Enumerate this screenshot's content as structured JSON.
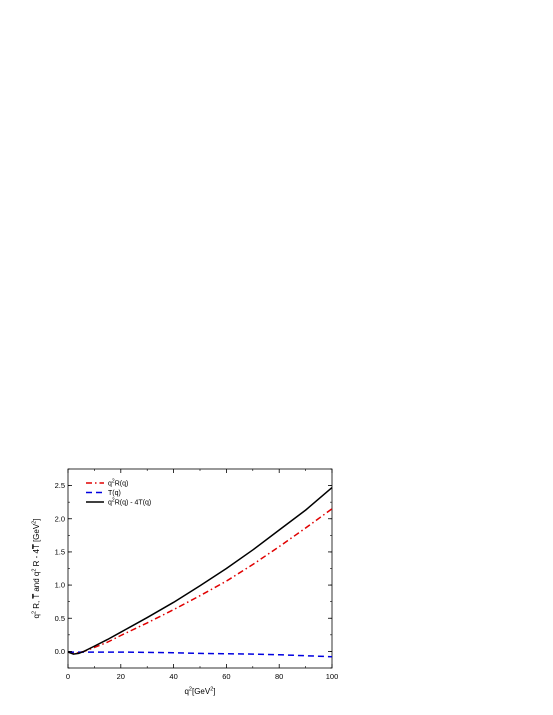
{
  "chart_data": {
    "type": "line",
    "xlabel_main": "q",
    "xlabel_sup": "2",
    "xlabel_rest": "[GeV",
    "xlabel_sup2": "2",
    "xlabel_end": "]",
    "ylabel_parts": [
      "q",
      "2",
      " R, ",
      "T",
      " and q",
      "2",
      " R - 4",
      "T",
      " [GeV",
      "2",
      "]"
    ],
    "xlim": [
      0,
      100
    ],
    "ylim": [
      -0.25,
      2.75
    ],
    "x_ticks": [
      0,
      20,
      40,
      60,
      80,
      100
    ],
    "y_ticks": [
      0.0,
      0.5,
      1.0,
      1.5,
      2.0,
      2.5
    ],
    "x_tick_labels": [
      "0",
      "20",
      "40",
      "60",
      "80",
      "100"
    ],
    "y_tick_labels": [
      "0.0",
      "0.5",
      "1.0",
      "1.5",
      "2.0",
      "2.5"
    ],
    "grid": false,
    "legend_position": "top-left",
    "series": [
      {
        "label_parts": [
          "q",
          "2",
          "R(q)"
        ],
        "color": "#e00000",
        "style": "dash-dot",
        "x": [
          0,
          2,
          4,
          6,
          8,
          10,
          15,
          20,
          30,
          40,
          50,
          60,
          70,
          80,
          90,
          100
        ],
        "y": [
          -0.01,
          -0.03,
          -0.02,
          0.0,
          0.03,
          0.06,
          0.14,
          0.24,
          0.43,
          0.63,
          0.84,
          1.06,
          1.31,
          1.58,
          1.86,
          2.15
        ]
      },
      {
        "label_parts": [
          "T(q)"
        ],
        "color": "#0000e0",
        "style": "dashed",
        "x": [
          0,
          10,
          20,
          30,
          40,
          50,
          60,
          70,
          80,
          90,
          100
        ],
        "y": [
          -0.01,
          -0.01,
          -0.01,
          -0.015,
          -0.02,
          -0.03,
          -0.035,
          -0.04,
          -0.05,
          -0.065,
          -0.08
        ]
      },
      {
        "label_parts": [
          "q",
          "2",
          "R(q) - 4T(q)"
        ],
        "color": "#000000",
        "style": "solid",
        "x": [
          0,
          2,
          4,
          6,
          8,
          10,
          15,
          20,
          30,
          40,
          50,
          60,
          70,
          80,
          90,
          100
        ],
        "y": [
          -0.01,
          -0.04,
          -0.03,
          0.0,
          0.04,
          0.08,
          0.18,
          0.29,
          0.51,
          0.74,
          0.99,
          1.25,
          1.53,
          1.83,
          2.13,
          2.47
        ]
      }
    ]
  }
}
